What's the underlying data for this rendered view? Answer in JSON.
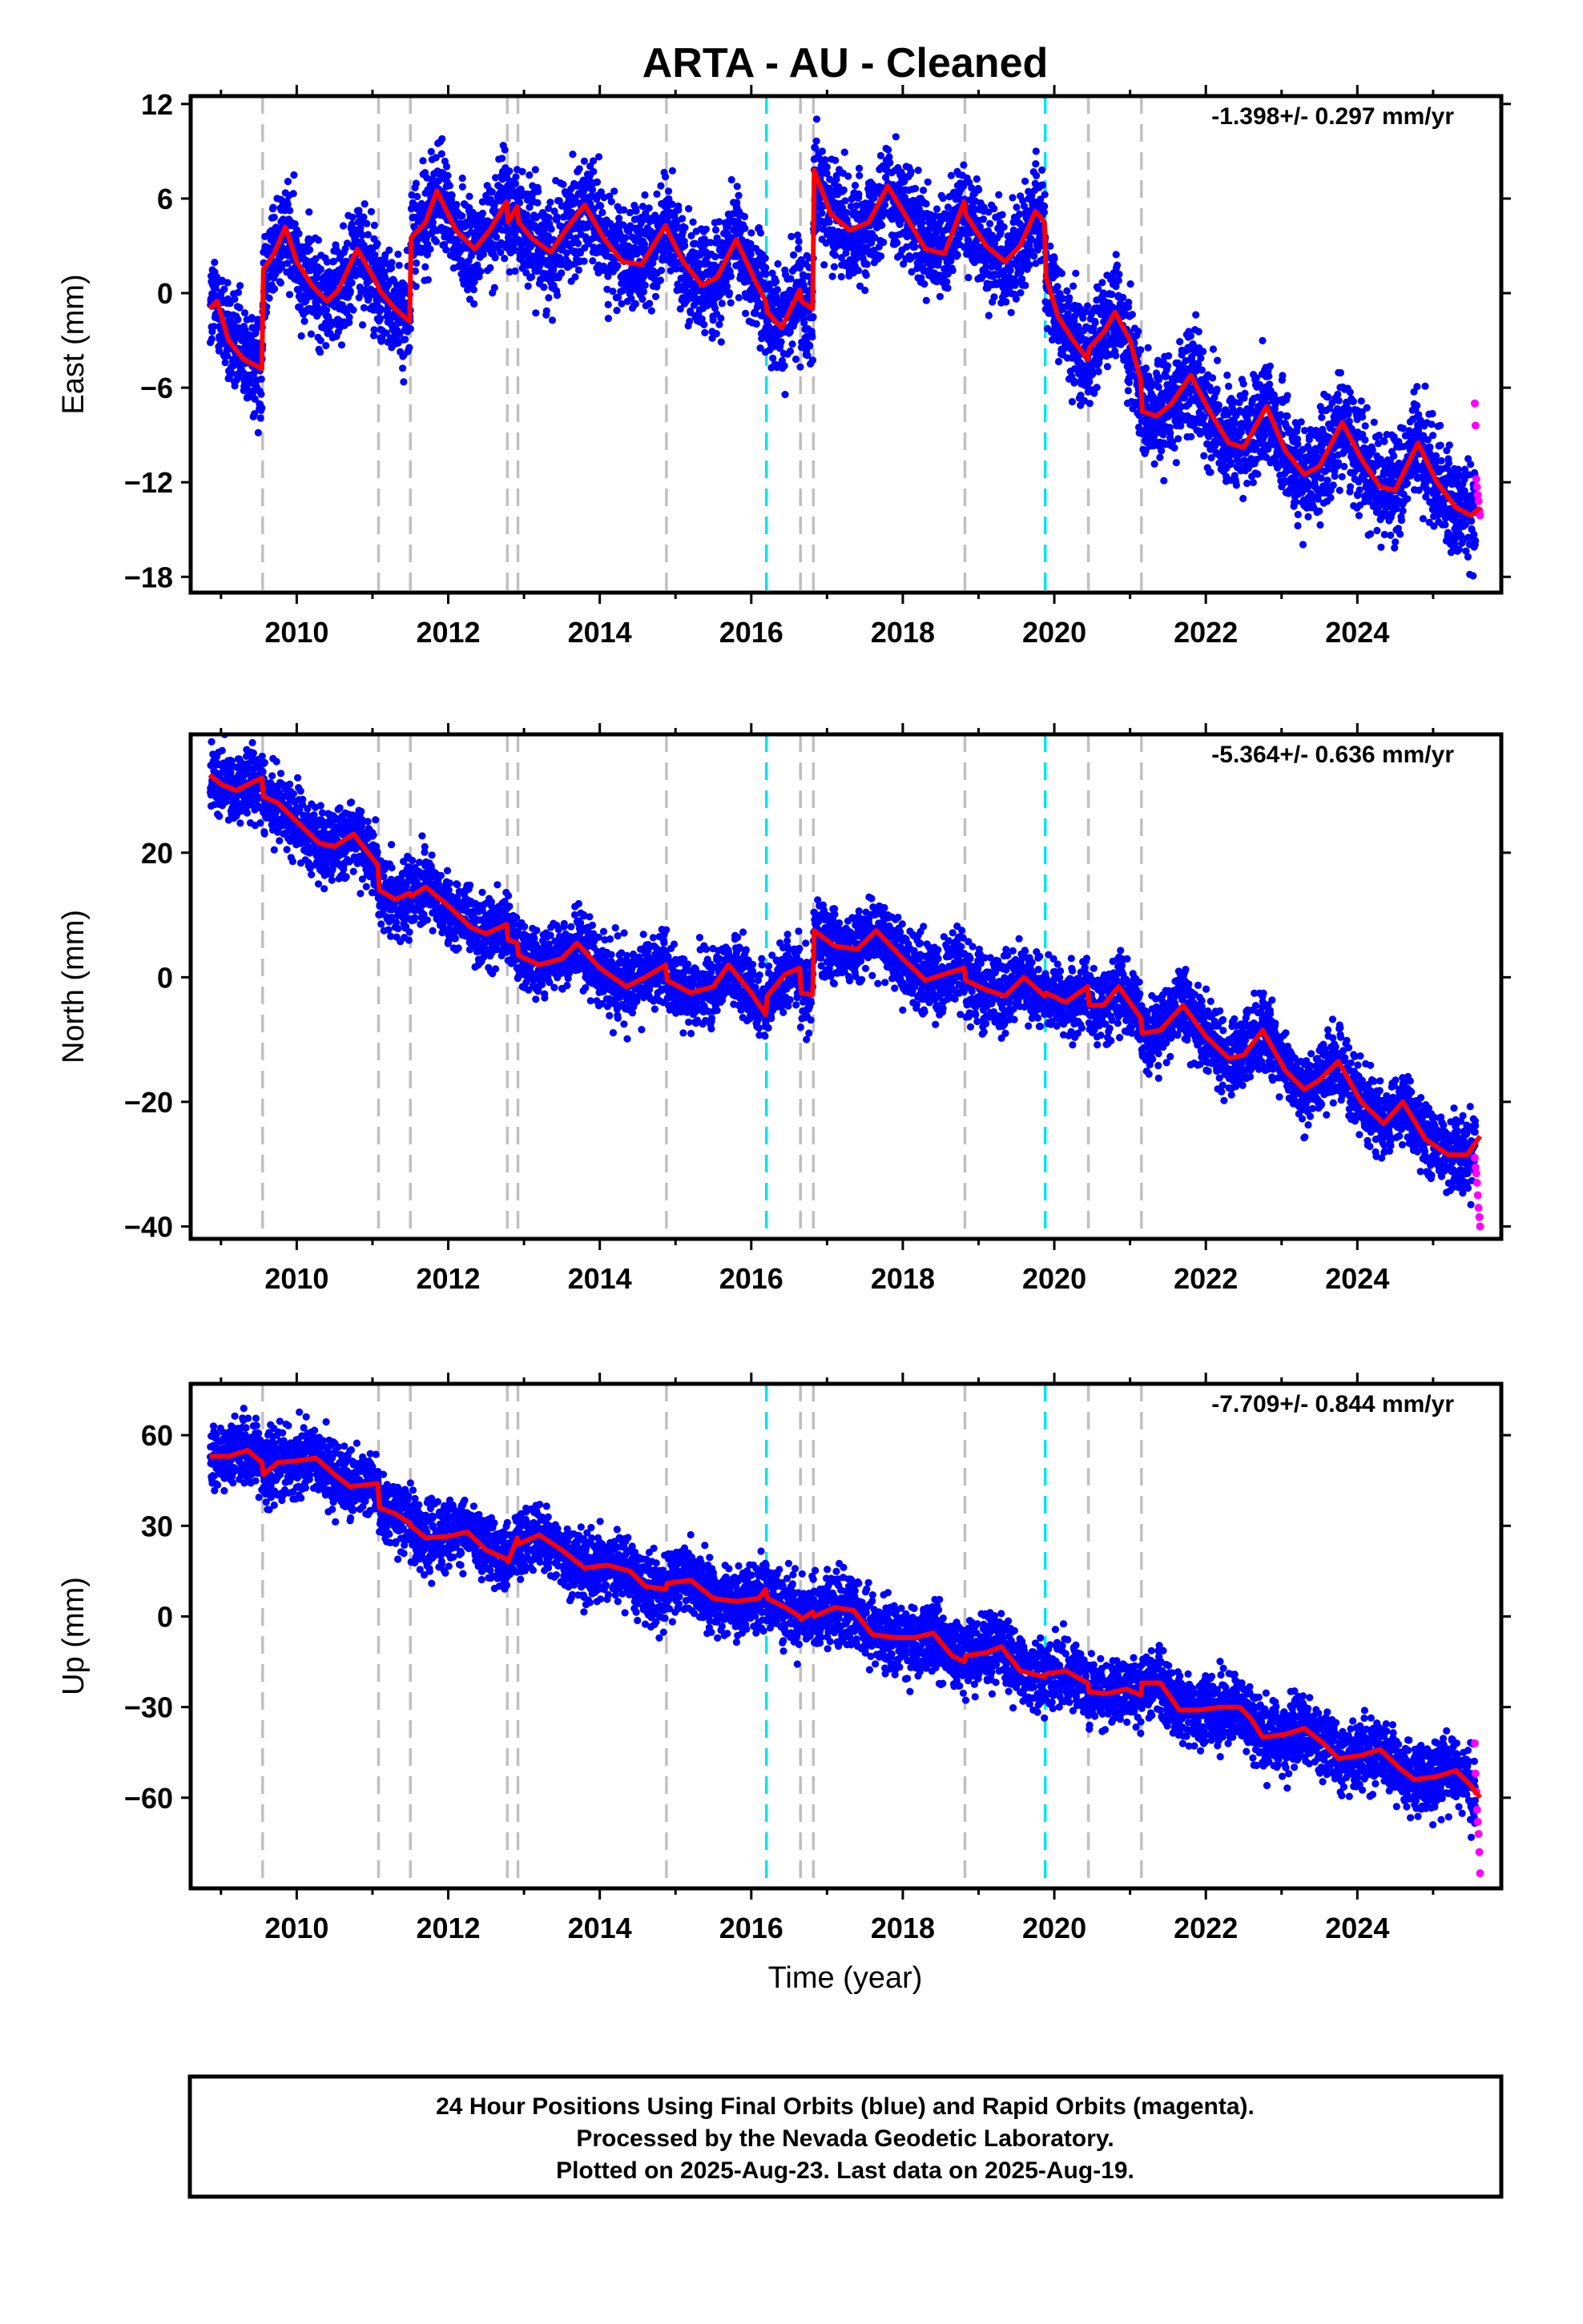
{
  "title": "ARTA  - AU - Cleaned",
  "xlabel": "Time (year)",
  "footer": {
    "line1": "24 Hour Positions Using Final Orbits (blue) and Rapid Orbits (magenta).",
    "line2": "Processed by the Nevada Geodetic Laboratory.",
    "line3": "Plotted on 2025-Aug-23. Last data on 2025-Aug-19."
  },
  "colors": {
    "final_points": "#0000ff",
    "rapid_points": "#ff00ff",
    "model_line": "#ff0000",
    "equipment_change": "#c0c0c0",
    "earthquake": "#00e5ee"
  },
  "chart_data": [
    {
      "type": "scatter",
      "component": "east",
      "ylabel": "East (mm)",
      "rate_text": "-1.398+/- 0.297 mm/yr",
      "xlim": [
        2008.6,
        2025.9
      ],
      "ylim": [
        -19,
        12.5
      ],
      "yticks": [
        12,
        6,
        0,
        -6,
        -12,
        -18
      ],
      "xticks": [
        2010,
        2012,
        2014,
        2016,
        2018,
        2020,
        2022,
        2024
      ],
      "equipment_changes": [
        2009.55,
        2011.08,
        2011.5,
        2012.78,
        2012.92,
        2014.88,
        2016.65,
        2016.82,
        2018.82,
        2020.45,
        2021.15
      ],
      "earthquakes": [
        2016.2,
        2019.88
      ],
      "spread": 1.6,
      "model": [
        [
          2008.85,
          -1.0
        ],
        [
          2008.95,
          -0.5
        ],
        [
          2009.1,
          -3.0
        ],
        [
          2009.3,
          -4.2
        ],
        [
          2009.54,
          -4.8
        ],
        [
          2009.56,
          1.5
        ],
        [
          2009.7,
          2.5
        ],
        [
          2009.85,
          4.2
        ],
        [
          2010.0,
          2.0
        ],
        [
          2010.2,
          0.5
        ],
        [
          2010.4,
          -0.5
        ],
        [
          2010.55,
          0.2
        ],
        [
          2010.8,
          2.8
        ],
        [
          2011.07,
          0.5
        ],
        [
          2011.09,
          0.2
        ],
        [
          2011.3,
          -1.0
        ],
        [
          2011.49,
          -1.8
        ],
        [
          2011.51,
          3.5
        ],
        [
          2011.7,
          4.5
        ],
        [
          2011.85,
          6.5
        ],
        [
          2012.1,
          4.0
        ],
        [
          2012.35,
          2.8
        ],
        [
          2012.55,
          4.0
        ],
        [
          2012.77,
          5.8
        ],
        [
          2012.79,
          4.5
        ],
        [
          2012.91,
          5.5
        ],
        [
          2012.93,
          4.5
        ],
        [
          2013.1,
          3.5
        ],
        [
          2013.35,
          2.6
        ],
        [
          2013.55,
          4.0
        ],
        [
          2013.8,
          5.6
        ],
        [
          2014.05,
          3.5
        ],
        [
          2014.3,
          2.0
        ],
        [
          2014.55,
          1.8
        ],
        [
          2014.87,
          4.3
        ],
        [
          2014.89,
          4.0
        ],
        [
          2015.1,
          2.0
        ],
        [
          2015.35,
          0.5
        ],
        [
          2015.55,
          1.0
        ],
        [
          2015.8,
          3.4
        ],
        [
          2016.05,
          0.8
        ],
        [
          2016.19,
          -0.5
        ],
        [
          2016.21,
          -1.2
        ],
        [
          2016.4,
          -2.2
        ],
        [
          2016.64,
          0.2
        ],
        [
          2016.66,
          -0.5
        ],
        [
          2016.81,
          -1.0
        ],
        [
          2016.83,
          7.8
        ],
        [
          2017.05,
          5.0
        ],
        [
          2017.3,
          4.0
        ],
        [
          2017.55,
          4.5
        ],
        [
          2017.8,
          6.8
        ],
        [
          2018.05,
          4.8
        ],
        [
          2018.3,
          2.8
        ],
        [
          2018.55,
          2.5
        ],
        [
          2018.81,
          5.8
        ],
        [
          2018.83,
          5.0
        ],
        [
          2019.1,
          3.0
        ],
        [
          2019.35,
          2.0
        ],
        [
          2019.55,
          3.0
        ],
        [
          2019.75,
          5.2
        ],
        [
          2019.87,
          4.5
        ],
        [
          2019.89,
          1.0
        ],
        [
          2020.05,
          -1.5
        ],
        [
          2020.25,
          -3.0
        ],
        [
          2020.44,
          -4.2
        ],
        [
          2020.46,
          -3.5
        ],
        [
          2020.65,
          -2.5
        ],
        [
          2020.8,
          -1.2
        ],
        [
          2021.0,
          -3.0
        ],
        [
          2021.14,
          -5.5
        ],
        [
          2021.16,
          -7.5
        ],
        [
          2021.35,
          -7.8
        ],
        [
          2021.55,
          -7.0
        ],
        [
          2021.8,
          -5.2
        ],
        [
          2022.05,
          -7.5
        ],
        [
          2022.3,
          -9.5
        ],
        [
          2022.5,
          -9.8
        ],
        [
          2022.8,
          -7.2
        ],
        [
          2023.05,
          -10.0
        ],
        [
          2023.3,
          -11.5
        ],
        [
          2023.5,
          -11.0
        ],
        [
          2023.8,
          -8.2
        ],
        [
          2024.05,
          -10.5
        ],
        [
          2024.3,
          -12.3
        ],
        [
          2024.5,
          -12.5
        ],
        [
          2024.8,
          -9.5
        ],
        [
          2025.05,
          -12.0
        ],
        [
          2025.3,
          -13.6
        ],
        [
          2025.5,
          -14.1
        ],
        [
          2025.62,
          -13.6
        ]
      ],
      "rapid_points": [
        [
          2025.55,
          -7.0
        ],
        [
          2025.56,
          -8.4
        ],
        [
          2025.57,
          -11.8
        ],
        [
          2025.58,
          -12.3
        ],
        [
          2025.59,
          -12.8
        ],
        [
          2025.6,
          -13.2
        ],
        [
          2025.61,
          -13.8
        ],
        [
          2025.62,
          -14.1
        ]
      ]
    },
    {
      "type": "scatter",
      "component": "north",
      "ylabel": "North (mm)",
      "rate_text": "-5.364+/- 0.636 mm/yr",
      "xlim": [
        2008.6,
        2025.9
      ],
      "ylim": [
        -42,
        39
      ],
      "yticks": [
        20,
        0,
        -20,
        -40
      ],
      "xticks": [
        2010,
        2012,
        2014,
        2016,
        2018,
        2020,
        2022,
        2024
      ],
      "equipment_changes": [
        2009.55,
        2011.08,
        2011.5,
        2012.78,
        2012.92,
        2014.88,
        2016.65,
        2016.82,
        2018.82,
        2020.45,
        2021.15
      ],
      "earthquakes": [
        2016.2,
        2019.88
      ],
      "spread": 2.8,
      "model": [
        [
          2008.85,
          32.5
        ],
        [
          2009.0,
          31.0
        ],
        [
          2009.2,
          30.0
        ],
        [
          2009.45,
          31.5
        ],
        [
          2009.54,
          32.0
        ],
        [
          2009.56,
          29.0
        ],
        [
          2009.75,
          28.0
        ],
        [
          2010.0,
          25.0
        ],
        [
          2010.3,
          21.5
        ],
        [
          2010.5,
          21.0
        ],
        [
          2010.75,
          23.0
        ],
        [
          2011.07,
          18.0
        ],
        [
          2011.09,
          14.0
        ],
        [
          2011.3,
          12.5
        ],
        [
          2011.49,
          13.5
        ],
        [
          2011.51,
          13.0
        ],
        [
          2011.7,
          14.5
        ],
        [
          2012.0,
          11.5
        ],
        [
          2012.3,
          8.0
        ],
        [
          2012.5,
          7.0
        ],
        [
          2012.77,
          8.5
        ],
        [
          2012.79,
          6.0
        ],
        [
          2012.91,
          5.5
        ],
        [
          2012.93,
          3.5
        ],
        [
          2013.2,
          2.0
        ],
        [
          2013.5,
          3.0
        ],
        [
          2013.7,
          5.5
        ],
        [
          2014.0,
          1.5
        ],
        [
          2014.35,
          -1.5
        ],
        [
          2014.6,
          0.0
        ],
        [
          2014.87,
          2.0
        ],
        [
          2014.89,
          -0.5
        ],
        [
          2015.2,
          -2.5
        ],
        [
          2015.5,
          -1.5
        ],
        [
          2015.7,
          2.0
        ],
        [
          2016.0,
          -2.5
        ],
        [
          2016.19,
          -6.0
        ],
        [
          2016.21,
          -3.0
        ],
        [
          2016.45,
          0.5
        ],
        [
          2016.64,
          1.5
        ],
        [
          2016.66,
          -2.5
        ],
        [
          2016.81,
          -2.8
        ],
        [
          2016.83,
          7.5
        ],
        [
          2017.1,
          5.0
        ],
        [
          2017.4,
          4.5
        ],
        [
          2017.65,
          7.5
        ],
        [
          2018.0,
          3.0
        ],
        [
          2018.3,
          -0.5
        ],
        [
          2018.55,
          0.5
        ],
        [
          2018.81,
          1.5
        ],
        [
          2018.83,
          -0.5
        ],
        [
          2019.1,
          -2.0
        ],
        [
          2019.35,
          -3.0
        ],
        [
          2019.6,
          0.0
        ],
        [
          2019.87,
          -3.0
        ],
        [
          2019.89,
          -2.5
        ],
        [
          2020.15,
          -4.0
        ],
        [
          2020.44,
          -1.5
        ],
        [
          2020.46,
          -4.5
        ],
        [
          2020.65,
          -4.5
        ],
        [
          2020.85,
          -1.5
        ],
        [
          2021.14,
          -6.5
        ],
        [
          2021.16,
          -9.0
        ],
        [
          2021.4,
          -8.5
        ],
        [
          2021.7,
          -4.5
        ],
        [
          2022.0,
          -9.5
        ],
        [
          2022.3,
          -13.0
        ],
        [
          2022.5,
          -12.5
        ],
        [
          2022.75,
          -8.5
        ],
        [
          2023.05,
          -15.0
        ],
        [
          2023.3,
          -18.0
        ],
        [
          2023.5,
          -16.5
        ],
        [
          2023.75,
          -13.5
        ],
        [
          2024.05,
          -20.0
        ],
        [
          2024.35,
          -23.5
        ],
        [
          2024.6,
          -20.0
        ],
        [
          2024.9,
          -26.0
        ],
        [
          2025.2,
          -28.5
        ],
        [
          2025.45,
          -28.5
        ],
        [
          2025.62,
          -25.5
        ]
      ],
      "rapid_points": [
        [
          2025.55,
          -29.0
        ],
        [
          2025.56,
          -30.5
        ],
        [
          2025.57,
          -31.5
        ],
        [
          2025.58,
          -33.0
        ],
        [
          2025.59,
          -35.0
        ],
        [
          2025.6,
          -37.0
        ],
        [
          2025.61,
          -38.5
        ],
        [
          2025.62,
          -40.0
        ]
      ]
    },
    {
      "type": "scatter",
      "component": "up",
      "ylabel": "Up (mm)",
      "rate_text": "-7.709+/- 0.844 mm/yr",
      "xlim": [
        2008.6,
        2025.9
      ],
      "ylim": [
        -90,
        77
      ],
      "yticks": [
        60,
        30,
        0,
        -30,
        -60
      ],
      "xticks": [
        2010,
        2012,
        2014,
        2016,
        2018,
        2020,
        2022,
        2024
      ],
      "equipment_changes": [
        2009.55,
        2011.08,
        2011.5,
        2012.78,
        2012.92,
        2014.88,
        2016.65,
        2016.82,
        2018.82,
        2020.45,
        2021.15
      ],
      "earthquakes": [
        2016.2,
        2019.88
      ],
      "spread": 5.5,
      "model": [
        [
          2008.85,
          53.0
        ],
        [
          2009.1,
          53.0
        ],
        [
          2009.35,
          55.0
        ],
        [
          2009.54,
          51.0
        ],
        [
          2009.56,
          47.0
        ],
        [
          2009.75,
          51.0
        ],
        [
          2010.0,
          51.5
        ],
        [
          2010.25,
          52.5
        ],
        [
          2010.5,
          47.0
        ],
        [
          2010.7,
          43.0
        ],
        [
          2011.07,
          44.0
        ],
        [
          2011.09,
          36.0
        ],
        [
          2011.3,
          34.0
        ],
        [
          2011.49,
          31.0
        ],
        [
          2011.51,
          30.0
        ],
        [
          2011.7,
          26.0
        ],
        [
          2012.0,
          26.5
        ],
        [
          2012.25,
          28.0
        ],
        [
          2012.5,
          22.0
        ],
        [
          2012.77,
          19.0
        ],
        [
          2012.79,
          18.0
        ],
        [
          2012.91,
          26.0
        ],
        [
          2012.93,
          24.0
        ],
        [
          2013.2,
          27.0
        ],
        [
          2013.5,
          22.0
        ],
        [
          2013.8,
          16.0
        ],
        [
          2014.1,
          17.0
        ],
        [
          2014.4,
          15.0
        ],
        [
          2014.6,
          10.0
        ],
        [
          2014.87,
          9.0
        ],
        [
          2014.89,
          11.0
        ],
        [
          2015.2,
          12.0
        ],
        [
          2015.5,
          6.0
        ],
        [
          2015.8,
          5.0
        ],
        [
          2016.1,
          6.0
        ],
        [
          2016.19,
          9.0
        ],
        [
          2016.21,
          6.0
        ],
        [
          2016.45,
          3.0
        ],
        [
          2016.64,
          0.0
        ],
        [
          2016.66,
          -1.0
        ],
        [
          2016.81,
          1.5
        ],
        [
          2016.83,
          0.0
        ],
        [
          2017.1,
          3.0
        ],
        [
          2017.35,
          2.0
        ],
        [
          2017.6,
          -6.0
        ],
        [
          2017.9,
          -7.0
        ],
        [
          2018.15,
          -7.0
        ],
        [
          2018.4,
          -5.5
        ],
        [
          2018.65,
          -13.0
        ],
        [
          2018.81,
          -15.0
        ],
        [
          2018.83,
          -13.0
        ],
        [
          2019.1,
          -12.0
        ],
        [
          2019.3,
          -10.0
        ],
        [
          2019.55,
          -18.0
        ],
        [
          2019.87,
          -20.0
        ],
        [
          2019.89,
          -19.0
        ],
        [
          2020.15,
          -18.0
        ],
        [
          2020.44,
          -22.0
        ],
        [
          2020.46,
          -25.0
        ],
        [
          2020.7,
          -25.5
        ],
        [
          2020.95,
          -24.0
        ],
        [
          2021.14,
          -26.0
        ],
        [
          2021.16,
          -22.0
        ],
        [
          2021.4,
          -22.0
        ],
        [
          2021.65,
          -31.0
        ],
        [
          2021.9,
          -31.0
        ],
        [
          2022.2,
          -30.0
        ],
        [
          2022.45,
          -30.0
        ],
        [
          2022.6,
          -34.0
        ],
        [
          2022.75,
          -40.0
        ],
        [
          2023.05,
          -39.0
        ],
        [
          2023.3,
          -37.0
        ],
        [
          2023.55,
          -42.0
        ],
        [
          2023.75,
          -47.0
        ],
        [
          2024.05,
          -46.0
        ],
        [
          2024.3,
          -44.0
        ],
        [
          2024.55,
          -50.0
        ],
        [
          2024.75,
          -54.0
        ],
        [
          2025.05,
          -53.0
        ],
        [
          2025.3,
          -51.0
        ],
        [
          2025.5,
          -56.0
        ],
        [
          2025.62,
          -60.0
        ]
      ],
      "rapid_points": [
        [
          2025.55,
          -42.0
        ],
        [
          2025.56,
          -52.0
        ],
        [
          2025.57,
          -58.0
        ],
        [
          2025.58,
          -64.0
        ],
        [
          2025.59,
          -68.0
        ],
        [
          2025.6,
          -72.0
        ],
        [
          2025.61,
          -78.0
        ],
        [
          2025.62,
          -85.0
        ]
      ]
    }
  ]
}
